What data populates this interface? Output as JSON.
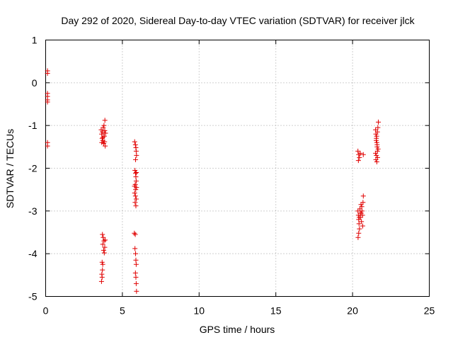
{
  "chart_data": {
    "type": "scatter",
    "title": "Day 292 of 2020, Sidereal Day-to-day VTEC variation (SDTVAR) for receiver jlck",
    "xlabel": "GPS time / hours",
    "ylabel": "SDTVAR / TECUs",
    "xlim": [
      0,
      25
    ],
    "ylim": [
      -5,
      1
    ],
    "xticks": [
      0,
      5,
      10,
      15,
      20,
      25
    ],
    "yticks": [
      1,
      0,
      -1,
      -2,
      -3,
      -4,
      -5
    ],
    "xtick_labels": [
      "0",
      "5",
      "10",
      "15",
      "20",
      "25"
    ],
    "ytick_labels": [
      "1",
      "0",
      "-1",
      "-2",
      "-3",
      "-4",
      "-5"
    ],
    "grid": true,
    "marker": "+",
    "color": "#e00000",
    "series": [
      {
        "name": "SDTVAR",
        "points": [
          [
            0.12,
            0.28
          ],
          [
            0.12,
            0.22
          ],
          [
            0.12,
            -0.25
          ],
          [
            0.12,
            -0.32
          ],
          [
            0.12,
            -0.4
          ],
          [
            0.12,
            -0.45
          ],
          [
            0.12,
            -1.4
          ],
          [
            0.12,
            -1.48
          ],
          [
            3.62,
            -1.1
          ],
          [
            3.65,
            -1.2
          ],
          [
            3.68,
            -1.3
          ],
          [
            3.7,
            -1.15
          ],
          [
            3.72,
            -1.35
          ],
          [
            3.75,
            -1.05
          ],
          [
            3.78,
            -1.42
          ],
          [
            3.8,
            -1.0
          ],
          [
            3.82,
            -1.25
          ],
          [
            3.84,
            -1.38
          ],
          [
            3.86,
            -0.88
          ],
          [
            3.88,
            -1.48
          ],
          [
            3.9,
            -1.18
          ],
          [
            3.74,
            -1.28
          ],
          [
            3.66,
            -1.4
          ],
          [
            3.85,
            -1.12
          ],
          [
            3.7,
            -3.55
          ],
          [
            3.75,
            -3.62
          ],
          [
            3.8,
            -3.7
          ],
          [
            3.72,
            -3.78
          ],
          [
            3.85,
            -3.85
          ],
          [
            3.78,
            -3.92
          ],
          [
            3.82,
            -3.98
          ],
          [
            3.68,
            -4.2
          ],
          [
            3.72,
            -4.25
          ],
          [
            3.7,
            -4.38
          ],
          [
            3.66,
            -4.48
          ],
          [
            3.68,
            -4.55
          ],
          [
            3.64,
            -4.65
          ],
          [
            3.88,
            -3.68
          ],
          [
            5.8,
            -1.38
          ],
          [
            5.85,
            -1.45
          ],
          [
            5.88,
            -1.52
          ],
          [
            5.9,
            -1.6
          ],
          [
            5.92,
            -1.7
          ],
          [
            5.86,
            -1.8
          ],
          [
            5.82,
            -2.05
          ],
          [
            5.86,
            -2.12
          ],
          [
            5.88,
            -2.2
          ],
          [
            5.9,
            -2.3
          ],
          [
            5.84,
            -2.38
          ],
          [
            5.92,
            -2.45
          ],
          [
            5.87,
            -2.5
          ],
          [
            5.8,
            -2.58
          ],
          [
            5.85,
            -2.65
          ],
          [
            5.9,
            -2.72
          ],
          [
            5.83,
            -2.8
          ],
          [
            5.88,
            -2.88
          ],
          [
            5.91,
            -2.1
          ],
          [
            5.79,
            -2.42
          ],
          [
            5.78,
            -3.52
          ],
          [
            5.84,
            -3.55
          ],
          [
            5.82,
            -3.88
          ],
          [
            5.86,
            -4.0
          ],
          [
            5.88,
            -4.15
          ],
          [
            5.9,
            -4.25
          ],
          [
            5.85,
            -4.45
          ],
          [
            5.88,
            -4.55
          ],
          [
            5.9,
            -4.7
          ],
          [
            5.92,
            -4.88
          ],
          [
            20.35,
            -1.6
          ],
          [
            20.4,
            -1.68
          ],
          [
            20.45,
            -1.75
          ],
          [
            20.38,
            -1.82
          ],
          [
            20.5,
            -1.65
          ],
          [
            20.7,
            -1.68
          ],
          [
            20.35,
            -3.0
          ],
          [
            20.38,
            -3.1
          ],
          [
            20.4,
            -3.2
          ],
          [
            20.42,
            -3.3
          ],
          [
            20.45,
            -3.42
          ],
          [
            20.4,
            -3.52
          ],
          [
            20.36,
            -3.62
          ],
          [
            20.48,
            -2.95
          ],
          [
            20.5,
            -3.05
          ],
          [
            20.52,
            -3.15
          ],
          [
            20.55,
            -2.85
          ],
          [
            20.58,
            -3.25
          ],
          [
            20.6,
            -2.9
          ],
          [
            20.62,
            -3.0
          ],
          [
            20.65,
            -3.1
          ],
          [
            20.68,
            -2.8
          ],
          [
            20.7,
            -2.65
          ],
          [
            20.66,
            -3.35
          ],
          [
            20.44,
            -3.15
          ],
          [
            20.56,
            -3.05
          ],
          [
            21.5,
            -1.1
          ],
          [
            21.52,
            -1.2
          ],
          [
            21.55,
            -1.3
          ],
          [
            21.58,
            -1.4
          ],
          [
            21.6,
            -1.5
          ],
          [
            21.62,
            -1.6
          ],
          [
            21.55,
            -1.7
          ],
          [
            21.52,
            -1.8
          ],
          [
            21.58,
            -1.85
          ],
          [
            21.65,
            -1.05
          ],
          [
            21.68,
            -0.92
          ],
          [
            21.62,
            -1.15
          ],
          [
            21.57,
            -1.25
          ],
          [
            21.54,
            -1.35
          ],
          [
            21.6,
            -1.45
          ],
          [
            21.66,
            -1.55
          ],
          [
            21.5,
            -1.65
          ],
          [
            21.63,
            -1.75
          ]
        ]
      }
    ]
  }
}
